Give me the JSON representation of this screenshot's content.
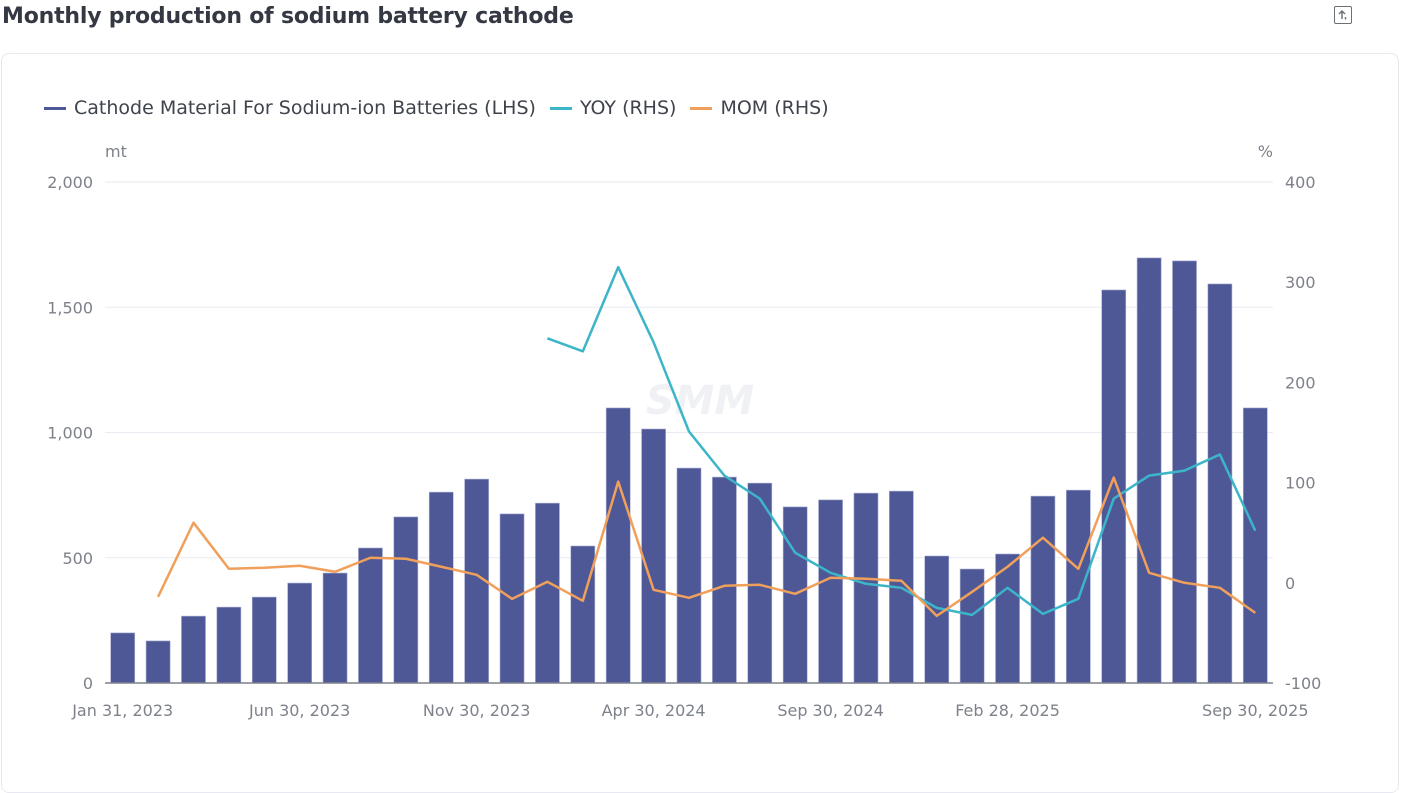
{
  "page": {
    "title": "Monthly production of sodium battery cathode",
    "export_icon": "export-icon"
  },
  "chart_data": {
    "type": "bar",
    "title": "Monthly production of sodium battery cathode",
    "watermark": "SMM",
    "legend_position": "top-left",
    "grid": true,
    "categories": [
      "Jan 31, 2023",
      "Feb 28, 2023",
      "Mar 31, 2023",
      "Apr 30, 2023",
      "May 31, 2023",
      "Jun 30, 2023",
      "Jul 31, 2023",
      "Aug 31, 2023",
      "Sep 30, 2023",
      "Oct 31, 2023",
      "Nov 30, 2023",
      "Dec 31, 2023",
      "Jan 31, 2024",
      "Feb 29, 2024",
      "Mar 31, 2024",
      "Apr 30, 2024",
      "May 31, 2024",
      "Jun 30, 2024",
      "Jul 31, 2024",
      "Aug 31, 2024",
      "Sep 30, 2024",
      "Oct 31, 2024",
      "Nov 30, 2024",
      "Dec 31, 2024",
      "Jan 31, 2025",
      "Feb 28, 2025",
      "Mar 31, 2025",
      "Apr 30, 2025",
      "May 31, 2025",
      "Jun 30, 2025",
      "Jul 31, 2025",
      "Aug 31, 2025",
      "Sep 30, 2025"
    ],
    "x_tick_labels": [
      {
        "index": 0,
        "label": "Jan 31, 2023"
      },
      {
        "index": 5,
        "label": "Jun 30, 2023"
      },
      {
        "index": 10,
        "label": "Nov 30, 2023"
      },
      {
        "index": 15,
        "label": "Apr 30, 2024"
      },
      {
        "index": 20,
        "label": "Sep 30, 2024"
      },
      {
        "index": 25,
        "label": "Feb 28, 2025"
      },
      {
        "index": 32,
        "label": "Sep 30, 2025"
      }
    ],
    "left_axis": {
      "unit": "mt",
      "range": [
        0,
        2000
      ],
      "ticks": [
        0,
        500,
        1000,
        1500,
        2000
      ],
      "tick_labels": [
        "0",
        "500",
        "1,000",
        "1,500",
        "2,000"
      ]
    },
    "right_axis": {
      "unit": "%",
      "range": [
        -100,
        400
      ],
      "ticks": [
        -100,
        0,
        100,
        200,
        300,
        400
      ],
      "tick_labels": [
        "-100",
        "0",
        "100",
        "200",
        "300",
        "400"
      ]
    },
    "series": [
      {
        "name": "Cathode Material For Sodium-ion Batteries (LHS)",
        "type": "bar",
        "axis": "left",
        "color": "#4e5896",
        "values": [
          200,
          168,
          267,
          303,
          343,
          399,
          439,
          539,
          663,
          762,
          814,
          675,
          718,
          547,
          1098,
          1014,
          858,
          822,
          798,
          703,
          731,
          758,
          766,
          507,
          455,
          515,
          746,
          770,
          1569,
          1697,
          1685,
          1593,
          1098
        ]
      },
      {
        "name": "YOY (RHS)",
        "type": "line",
        "axis": "right",
        "color": "#3db5c9",
        "values": [
          null,
          null,
          null,
          null,
          null,
          null,
          null,
          null,
          null,
          null,
          null,
          null,
          244,
          231,
          315,
          240,
          151,
          107,
          84,
          30,
          10,
          -1,
          -5,
          -25,
          -32,
          -5,
          -31,
          -16,
          84,
          107,
          112,
          128,
          52
        ]
      },
      {
        "name": "MOM (RHS)",
        "type": "line",
        "axis": "right",
        "color": "#f0a05a",
        "values": [
          null,
          -14,
          60,
          14,
          15,
          17,
          11,
          25,
          24,
          16,
          8,
          -16,
          1,
          -18,
          101,
          -7,
          -15,
          -3,
          -2,
          -11,
          5,
          4,
          2,
          -33,
          -9,
          16,
          45,
          14,
          105,
          10,
          0,
          -5,
          -30
        ]
      }
    ]
  }
}
